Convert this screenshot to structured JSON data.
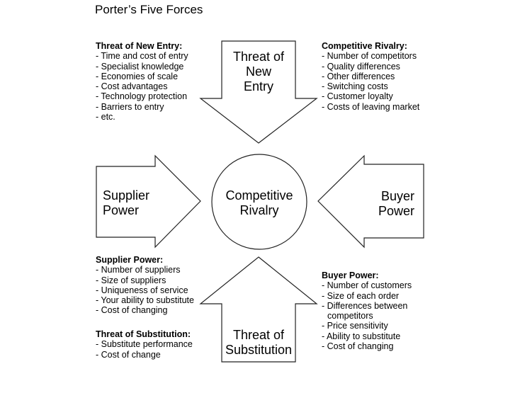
{
  "title": "Porter’s Five Forces",
  "shapes": {
    "top_arrow": [
      "Threat of",
      "New",
      "Entry"
    ],
    "left_arrow": [
      "Supplier",
      "Power"
    ],
    "center_circle": [
      "Competitive",
      "Rivalry"
    ],
    "right_arrow": [
      "Buyer",
      "Power"
    ],
    "bottom_arrow": [
      "Threat of",
      "Substitution"
    ]
  },
  "notes": {
    "new_entry": {
      "heading": "Threat of New Entry:",
      "items": [
        "- Time and cost of entry",
        "- Specialist knowledge",
        "- Economies of scale",
        "- Cost advantages",
        "- Technology protection",
        "- Barriers to entry",
        "- etc."
      ]
    },
    "competitive_rivalry": {
      "heading": "Competitive Rivalry:",
      "items": [
        "- Number of competitors",
        "- Quality differences",
        "- Other differences",
        "- Switching costs",
        "- Customer loyalty",
        "- Costs of leaving market"
      ]
    },
    "supplier_power": {
      "heading": "Supplier Power:",
      "items": [
        "- Number of suppliers",
        "- Size of suppliers",
        "- Uniqueness of service",
        "- Your ability to substitute",
        "- Cost of changing"
      ]
    },
    "threat_of_substitution": {
      "heading": "Threat of Substitution:",
      "items": [
        "- Substitute performance",
        "- Cost of change"
      ]
    },
    "buyer_power": {
      "heading": "Buyer Power:",
      "items": [
        "- Number of customers",
        "- Size of each order",
        "- Differences between",
        "competitors",
        "- Price sensitivity",
        "- Ability to substitute",
        "- Cost of changing"
      ]
    }
  }
}
